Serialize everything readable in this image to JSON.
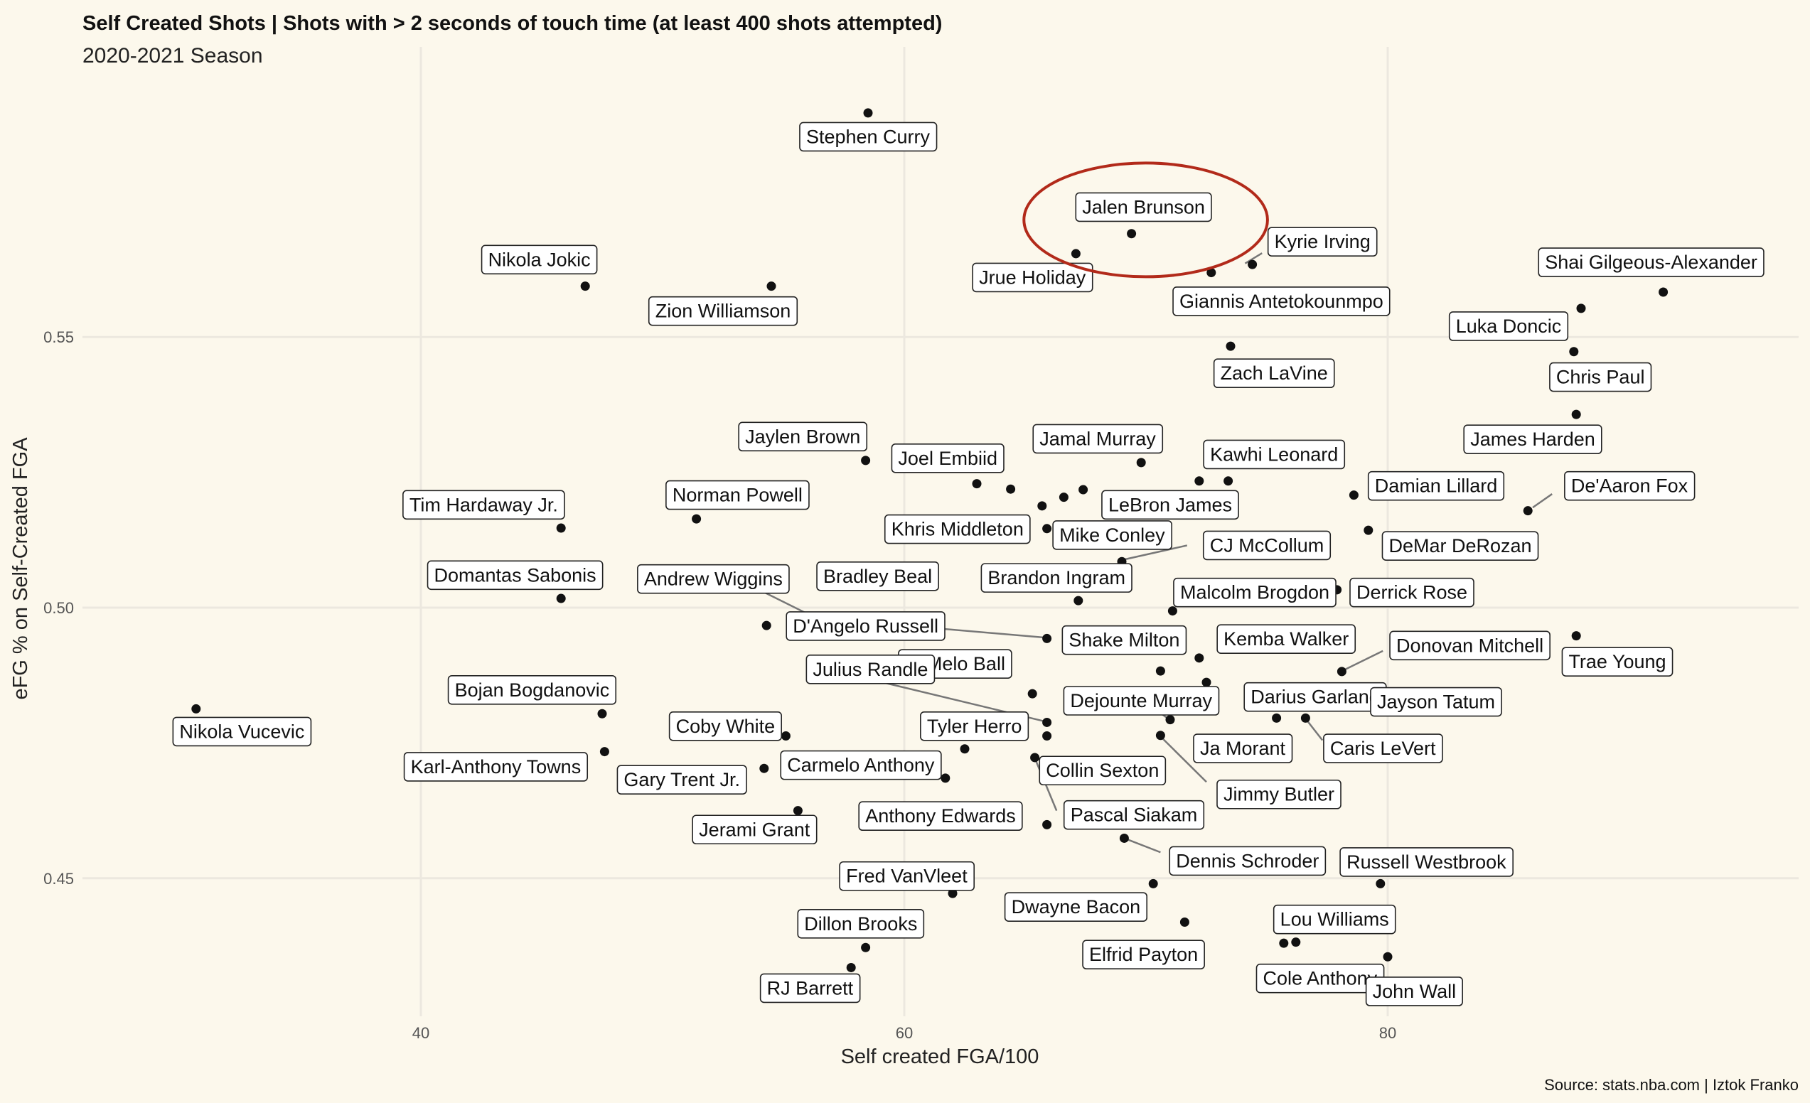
{
  "title": "Self Created Shots | Shots with > 2 seconds of touch time (at least 400 shots attempted)",
  "subtitle": "2020-2021 Season",
  "caption": "Source: stats.nba.com | Iztok Franko",
  "highlight": {
    "player": "Jalen Brunson",
    "color": "#b22a1a"
  },
  "colors": {
    "background": "#fcf8ec",
    "grid": "#ece8df",
    "point": "#111111",
    "label_fill": "#ffffff"
  },
  "chart_data": {
    "type": "scatter",
    "title": "Self Created Shots | Shots with > 2 seconds of touch time (at least 400 shots attempted)",
    "subtitle": "2020-2021 Season",
    "xlabel": "Self created FGA/100",
    "ylabel": "eFG % on Self-Created FGA",
    "xlim": [
      26,
      97
    ],
    "ylim": [
      0.4245,
      0.6036
    ],
    "xticks": [
      40,
      60,
      80
    ],
    "yticks": [
      0.45,
      0.5,
      0.55
    ],
    "xtick_labels": [
      "40",
      "60",
      "80"
    ],
    "ytick_labels": [
      "0.45",
      "0.50",
      "0.55"
    ],
    "grid": true,
    "points": [
      {
        "name": "Stephen Curry",
        "x": 58.5,
        "y": 0.5914
      },
      {
        "name": "Jalen Brunson",
        "x": 69.4,
        "y": 0.5691
      },
      {
        "name": "Kyrie Irving",
        "x": 74.4,
        "y": 0.5634
      },
      {
        "name": "Jrue Holiday",
        "x": 67.1,
        "y": 0.5654
      },
      {
        "name": "Giannis Antetokounmpo",
        "x": 72.7,
        "y": 0.5619
      },
      {
        "name": "Nikola Jokic",
        "x": 46.8,
        "y": 0.5594
      },
      {
        "name": "Zion Williamson",
        "x": 54.5,
        "y": 0.5594
      },
      {
        "name": "Shai Gilgeous-Alexander",
        "x": 91.4,
        "y": 0.5583
      },
      {
        "name": "Luka Doncic",
        "x": 88.0,
        "y": 0.5553
      },
      {
        "name": "Chris Paul",
        "x": 87.7,
        "y": 0.5473
      },
      {
        "name": "Zach LaVine",
        "x": 73.5,
        "y": 0.5483
      },
      {
        "name": "James Harden",
        "x": 87.8,
        "y": 0.5357
      },
      {
        "name": "Jaylen Brown",
        "x": 58.4,
        "y": 0.5272
      },
      {
        "name": "Jamal Murray",
        "x": 69.8,
        "y": 0.5268
      },
      {
        "name": "Kawhi Leonard",
        "x": 73.4,
        "y": 0.5234
      },
      {
        "name": "Joel Embiid",
        "x": 63.0,
        "y": 0.5229
      },
      {
        "name": "Khris Middleton",
        "x": 64.4,
        "y": 0.5219
      },
      {
        "name": "LeBron James",
        "x": 67.4,
        "y": 0.5218
      },
      {
        "name": "Mike Conley",
        "x": 65.7,
        "y": 0.5188
      },
      {
        "name": "Kawhi Leonard",
        "x": 72.2,
        "y": 0.5234
      },
      {
        "name": "Damian Lillard",
        "x": 78.6,
        "y": 0.5208
      },
      {
        "name": "De'Aaron Fox",
        "x": 85.8,
        "y": 0.5179
      },
      {
        "name": "Tim Hardaway Jr.",
        "x": 45.8,
        "y": 0.5147
      },
      {
        "name": "Norman Powell",
        "x": 51.4,
        "y": 0.5164
      },
      {
        "name": "LeBron James",
        "x": 66.6,
        "y": 0.5204
      },
      {
        "name": "Mike Conley",
        "x": 65.9,
        "y": 0.5146
      },
      {
        "name": "DeMar DeRozan",
        "x": 79.2,
        "y": 0.5143
      },
      {
        "name": "CJ McCollum",
        "x": 69.0,
        "y": 0.5085
      },
      {
        "name": "Domantas Sabonis",
        "x": 45.8,
        "y": 0.5017
      },
      {
        "name": "Brandon Ingram",
        "x": 67.2,
        "y": 0.5013
      },
      {
        "name": "Malcolm Brogdon",
        "x": 71.1,
        "y": 0.4994
      },
      {
        "name": "Derrick Rose",
        "x": 77.9,
        "y": 0.5033
      },
      {
        "name": "Andrew Wiggins",
        "x": 54.3,
        "y": 0.4967
      },
      {
        "name": "D'Angelo Russell",
        "x": 65.9,
        "y": 0.4943
      },
      {
        "name": "Trae Young",
        "x": 87.8,
        "y": 0.4948
      },
      {
        "name": "Kemba Walker",
        "x": 72.2,
        "y": 0.4907
      },
      {
        "name": "Shake Milton",
        "x": 70.6,
        "y": 0.4883
      },
      {
        "name": "Donovan Mitchell",
        "x": 78.1,
        "y": 0.4882
      },
      {
        "name": "Darius Garland",
        "x": 72.5,
        "y": 0.4862
      },
      {
        "name": "Jayson Tatum",
        "x": 78.9,
        "y": 0.4846
      },
      {
        "name": "LaMelo Ball",
        "x": 65.3,
        "y": 0.4841
      },
      {
        "name": "Nikola Vucevic",
        "x": 30.7,
        "y": 0.4813
      },
      {
        "name": "Bojan Bogdanovic",
        "x": 47.5,
        "y": 0.4804
      },
      {
        "name": "Dejounte Murray",
        "x": 71.0,
        "y": 0.4793
      },
      {
        "name": "Darius Garland",
        "x": 75.4,
        "y": 0.4796
      },
      {
        "name": "Caris LeVert",
        "x": 76.6,
        "y": 0.4796
      },
      {
        "name": "Julius Randle",
        "x": 65.9,
        "y": 0.4788
      },
      {
        "name": "Coby White",
        "x": 55.1,
        "y": 0.4763
      },
      {
        "name": "Julius Randle",
        "x": 65.9,
        "y": 0.4763
      },
      {
        "name": "Ja Morant",
        "x": 70.6,
        "y": 0.4764
      },
      {
        "name": "Karl-Anthony Towns",
        "x": 47.6,
        "y": 0.4734
      },
      {
        "name": "Tyler Herro",
        "x": 62.5,
        "y": 0.4739
      },
      {
        "name": "Collin Sexton",
        "x": 65.4,
        "y": 0.4723
      },
      {
        "name": "Gary Trent Jr.",
        "x": 54.2,
        "y": 0.4703
      },
      {
        "name": "Carmelo Anthony",
        "x": 61.7,
        "y": 0.4685
      },
      {
        "name": "Jerami Grant",
        "x": 55.6,
        "y": 0.4625
      },
      {
        "name": "Pascal Siakam",
        "x": 65.9,
        "y": 0.4599
      },
      {
        "name": "Dennis Schroder",
        "x": 69.1,
        "y": 0.4574
      },
      {
        "name": "Russell Westbrook",
        "x": 79.7,
        "y": 0.449
      },
      {
        "name": "Dwayne Bacon",
        "x": 70.3,
        "y": 0.449
      },
      {
        "name": "Fred VanVleet",
        "x": 62.0,
        "y": 0.4472
      },
      {
        "name": "Elfrid Payton",
        "x": 71.6,
        "y": 0.4419
      },
      {
        "name": "Lou Williams",
        "x": 75.7,
        "y": 0.438
      },
      {
        "name": "Cole Anthony",
        "x": 76.2,
        "y": 0.4382
      },
      {
        "name": "John Wall",
        "x": 80.0,
        "y": 0.4355
      },
      {
        "name": "Dillon Brooks",
        "x": 58.4,
        "y": 0.4372
      },
      {
        "name": "RJ Barrett",
        "x": 57.8,
        "y": 0.4335
      }
    ]
  },
  "labels": [
    {
      "text": "Stephen Curry",
      "x": 58.5,
      "y": 0.587,
      "anchor": "middle"
    },
    {
      "text": "Jalen Brunson",
      "x": 69.9,
      "y": 0.574,
      "anchor": "middle"
    },
    {
      "text": "Kyrie Irving",
      "x": 77.3,
      "y": 0.5676,
      "anchor": "middle"
    },
    {
      "text": "Jrue Holiday",
      "x": 65.3,
      "y": 0.561,
      "anchor": "middle"
    },
    {
      "text": "Giannis Antetokounmpo",
      "x": 75.6,
      "y": 0.5566,
      "anchor": "middle"
    },
    {
      "text": "Nikola Jokic",
      "x": 44.9,
      "y": 0.5643,
      "anchor": "middle"
    },
    {
      "text": "Zion Williamson",
      "x": 52.5,
      "y": 0.5548,
      "anchor": "middle"
    },
    {
      "text": "Shai Gilgeous-Alexander",
      "x": 90.9,
      "y": 0.5638,
      "anchor": "middle"
    },
    {
      "text": "Luka Doncic",
      "x": 85.0,
      "y": 0.552,
      "anchor": "middle"
    },
    {
      "text": "Chris Paul",
      "x": 88.8,
      "y": 0.5426,
      "anchor": "middle"
    },
    {
      "text": "Zach LaVine",
      "x": 75.3,
      "y": 0.5433,
      "anchor": "middle"
    },
    {
      "text": "James Harden",
      "x": 86.0,
      "y": 0.5311,
      "anchor": "middle"
    },
    {
      "text": "Jaylen Brown",
      "x": 55.8,
      "y": 0.5316,
      "anchor": "middle"
    },
    {
      "text": "Jamal Murray",
      "x": 68.0,
      "y": 0.5312,
      "anchor": "middle"
    },
    {
      "text": "Kawhi Leonard",
      "x": 75.3,
      "y": 0.5283,
      "anchor": "middle"
    },
    {
      "text": "Joel Embiid",
      "x": 61.8,
      "y": 0.5276,
      "anchor": "middle"
    },
    {
      "text": "Khris Middleton",
      "x": 62.2,
      "y": 0.5145,
      "anchor": "middle"
    },
    {
      "text": "LeBron James",
      "x": 71.0,
      "y": 0.519,
      "anchor": "middle"
    },
    {
      "text": "Mike Conley",
      "x": 68.6,
      "y": 0.5134,
      "anchor": "middle"
    },
    {
      "text": "Damian Lillard",
      "x": 82.0,
      "y": 0.5225,
      "anchor": "middle"
    },
    {
      "text": "De'Aaron Fox",
      "x": 90.0,
      "y": 0.5225,
      "anchor": "middle"
    },
    {
      "text": "Tim Hardaway Jr.",
      "x": 42.6,
      "y": 0.519,
      "anchor": "middle"
    },
    {
      "text": "Norman Powell",
      "x": 53.1,
      "y": 0.5208,
      "anchor": "middle"
    },
    {
      "text": "DeMar DeRozan",
      "x": 83.0,
      "y": 0.5114,
      "anchor": "middle"
    },
    {
      "text": "CJ McCollum",
      "x": 75.0,
      "y": 0.5115,
      "anchor": "middle"
    },
    {
      "text": "Bradley Beal",
      "x": 58.9,
      "y": 0.5058,
      "anchor": "middle"
    },
    {
      "text": "Brandon Ingram",
      "x": 66.3,
      "y": 0.5055,
      "anchor": "middle"
    },
    {
      "text": "Domantas Sabonis",
      "x": 43.9,
      "y": 0.506,
      "anchor": "middle"
    },
    {
      "text": "Malcolm Brogdon",
      "x": 74.5,
      "y": 0.5028,
      "anchor": "middle"
    },
    {
      "text": "Derrick Rose",
      "x": 81.0,
      "y": 0.5028,
      "anchor": "middle"
    },
    {
      "text": "Andrew Wiggins",
      "x": 52.1,
      "y": 0.5053,
      "anchor": "middle"
    },
    {
      "text": "D'Angelo Russell",
      "x": 58.4,
      "y": 0.4966,
      "anchor": "middle"
    },
    {
      "text": "Trae Young",
      "x": 89.5,
      "y": 0.49,
      "anchor": "middle"
    },
    {
      "text": "Kemba Walker",
      "x": 75.8,
      "y": 0.4942,
      "anchor": "middle"
    },
    {
      "text": "Shake Milton",
      "x": 69.1,
      "y": 0.494,
      "anchor": "middle"
    },
    {
      "text": "Donovan Mitchell",
      "x": 83.4,
      "y": 0.493,
      "anchor": "middle"
    },
    {
      "text": "LaMelo Ball",
      "x": 62.1,
      "y": 0.4896,
      "anchor": "middle"
    },
    {
      "text": "Julius Randle",
      "x": 58.6,
      "y": 0.4886,
      "anchor": "middle"
    },
    {
      "text": "Nikola Vucevic",
      "x": 32.6,
      "y": 0.4771,
      "anchor": "middle"
    },
    {
      "text": "Bojan Bogdanovic",
      "x": 44.6,
      "y": 0.4848,
      "anchor": "middle"
    },
    {
      "text": "Dejounte Murray",
      "x": 69.8,
      "y": 0.4828,
      "anchor": "middle"
    },
    {
      "text": "Darius Garland",
      "x": 77.0,
      "y": 0.4835,
      "anchor": "middle"
    },
    {
      "text": "Jayson Tatum",
      "x": 82.0,
      "y": 0.4826,
      "anchor": "middle"
    },
    {
      "text": "Coby White",
      "x": 52.6,
      "y": 0.4781,
      "anchor": "middle"
    },
    {
      "text": "Tyler Herro",
      "x": 62.9,
      "y": 0.4781,
      "anchor": "middle"
    },
    {
      "text": "Ja Morant",
      "x": 74.0,
      "y": 0.474,
      "anchor": "middle"
    },
    {
      "text": "Caris LeVert",
      "x": 79.8,
      "y": 0.474,
      "anchor": "middle"
    },
    {
      "text": "Karl-Anthony Towns",
      "x": 43.1,
      "y": 0.4706,
      "anchor": "middle"
    },
    {
      "text": "Collin Sexton",
      "x": 68.2,
      "y": 0.4699,
      "anchor": "middle"
    },
    {
      "text": "Carmelo Anthony",
      "x": 58.2,
      "y": 0.4709,
      "anchor": "middle"
    },
    {
      "text": "Gary Trent Jr.",
      "x": 50.8,
      "y": 0.4682,
      "anchor": "middle"
    },
    {
      "text": "Jimmy Butler",
      "x": 75.5,
      "y": 0.4655,
      "anchor": "middle"
    },
    {
      "text": "Pascal Siakam",
      "x": 69.5,
      "y": 0.4617,
      "anchor": "middle"
    },
    {
      "text": "Anthony Edwards",
      "x": 61.5,
      "y": 0.4615,
      "anchor": "middle"
    },
    {
      "text": "Jerami Grant",
      "x": 53.8,
      "y": 0.459,
      "anchor": "middle"
    },
    {
      "text": "Dennis Schroder",
      "x": 74.2,
      "y": 0.4532,
      "anchor": "middle"
    },
    {
      "text": "Russell Westbrook",
      "x": 81.6,
      "y": 0.453,
      "anchor": "middle"
    },
    {
      "text": "Fred VanVleet",
      "x": 60.1,
      "y": 0.4504,
      "anchor": "middle"
    },
    {
      "text": "Dwayne Bacon",
      "x": 67.1,
      "y": 0.4447,
      "anchor": "middle"
    },
    {
      "text": "Lou Williams",
      "x": 77.8,
      "y": 0.4424,
      "anchor": "middle"
    },
    {
      "text": "Dillon Brooks",
      "x": 58.2,
      "y": 0.4416,
      "anchor": "middle"
    },
    {
      "text": "Elfrid Payton",
      "x": 69.9,
      "y": 0.4359,
      "anchor": "middle"
    },
    {
      "text": "Cole Anthony",
      "x": 77.2,
      "y": 0.4315,
      "anchor": "middle"
    },
    {
      "text": "John Wall",
      "x": 81.1,
      "y": 0.4291,
      "anchor": "middle"
    },
    {
      "text": "RJ Barrett",
      "x": 56.1,
      "y": 0.4297,
      "anchor": "middle"
    }
  ],
  "connectors": [
    {
      "x1": 74.1,
      "y1": 0.5636,
      "x2": 74.8,
      "y2": 0.5655
    },
    {
      "x1": 86.0,
      "y1": 0.5185,
      "x2": 86.8,
      "y2": 0.521
    },
    {
      "x1": 69.1,
      "y1": 0.5089,
      "x2": 71.7,
      "y2": 0.5115
    },
    {
      "x1": 53.5,
      "y1": 0.5044,
      "x2": 56.7,
      "y2": 0.4973
    },
    {
      "x1": 66.0,
      "y1": 0.4944,
      "x2": 61.3,
      "y2": 0.4962
    },
    {
      "x1": 78.2,
      "y1": 0.4885,
      "x2": 79.8,
      "y2": 0.492
    },
    {
      "x1": 57.9,
      "y1": 0.4875,
      "x2": 65.8,
      "y2": 0.479
    },
    {
      "x1": 71.0,
      "y1": 0.4792,
      "x2": 70.3,
      "y2": 0.4815
    },
    {
      "x1": 76.6,
      "y1": 0.4795,
      "x2": 77.3,
      "y2": 0.4755
    },
    {
      "x1": 70.6,
      "y1": 0.4762,
      "x2": 72.5,
      "y2": 0.4678
    },
    {
      "x1": 65.4,
      "y1": 0.4722,
      "x2": 66.3,
      "y2": 0.4625
    },
    {
      "x1": 69.1,
      "y1": 0.4574,
      "x2": 70.6,
      "y2": 0.4548
    }
  ]
}
